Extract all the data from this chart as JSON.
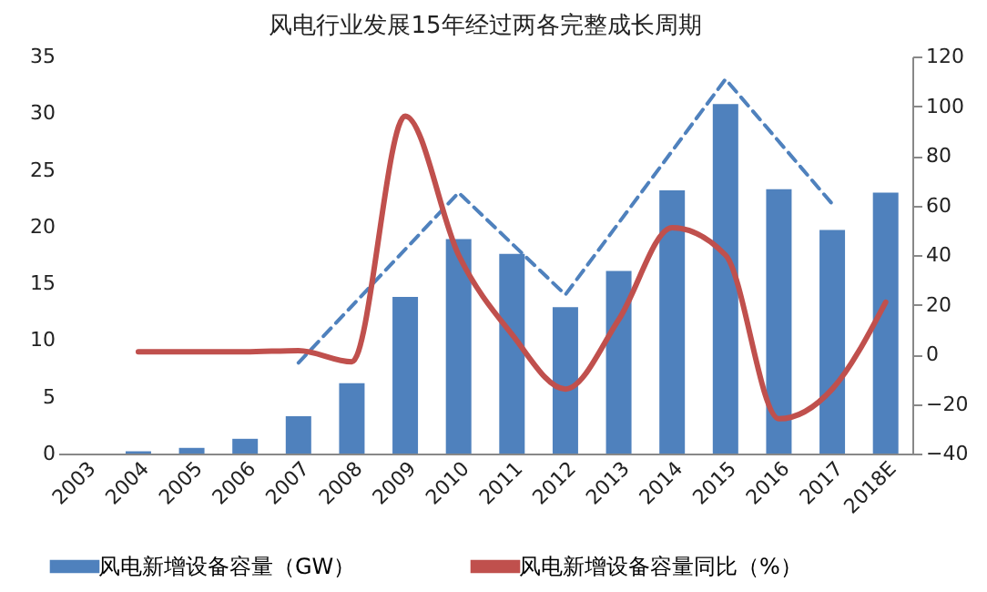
{
  "chart_data": {
    "type": "bar",
    "title": "风电行业发展15年经过两各完整成长周期",
    "categories": [
      "2003",
      "2004",
      "2005",
      "2006",
      "2007",
      "2008",
      "2009",
      "2010",
      "2011",
      "2012",
      "2013",
      "2014",
      "2015",
      "2016",
      "2017",
      "2018E"
    ],
    "series": [
      {
        "name": "风电新增设备容量（GW）",
        "color": "#4f81bd",
        "values": [
          0,
          0.2,
          0.5,
          1.3,
          3.3,
          6.2,
          13.8,
          18.9,
          17.6,
          12.9,
          16.1,
          23.2,
          30.8,
          23.3,
          19.7,
          23.0
        ]
      },
      {
        "name": "风电新增设备容量同比（%）",
        "type": "line",
        "axis": "y2",
        "color": "#c0504d",
        "values": [
          null,
          1,
          1,
          1,
          1.5,
          -3,
          96,
          40,
          8,
          -14,
          14,
          51,
          40,
          -26,
          -14,
          21
        ]
      },
      {
        "type": "line",
        "line_style": "dashed",
        "color": "#4f81bd",
        "values": [
          null,
          null,
          null,
          null,
          8,
          null,
          null,
          23,
          null,
          14,
          null,
          null,
          33,
          null,
          22,
          null
        ]
      }
    ],
    "ylim": [
      0,
      35
    ],
    "yticks": [
      0,
      5,
      10,
      15,
      20,
      25,
      30,
      35
    ],
    "y2lim": [
      -40,
      120
    ],
    "y2ticks": [
      -40,
      -20,
      0,
      20,
      40,
      60,
      80,
      100,
      120
    ],
    "grid": false,
    "legend": "bottom"
  }
}
